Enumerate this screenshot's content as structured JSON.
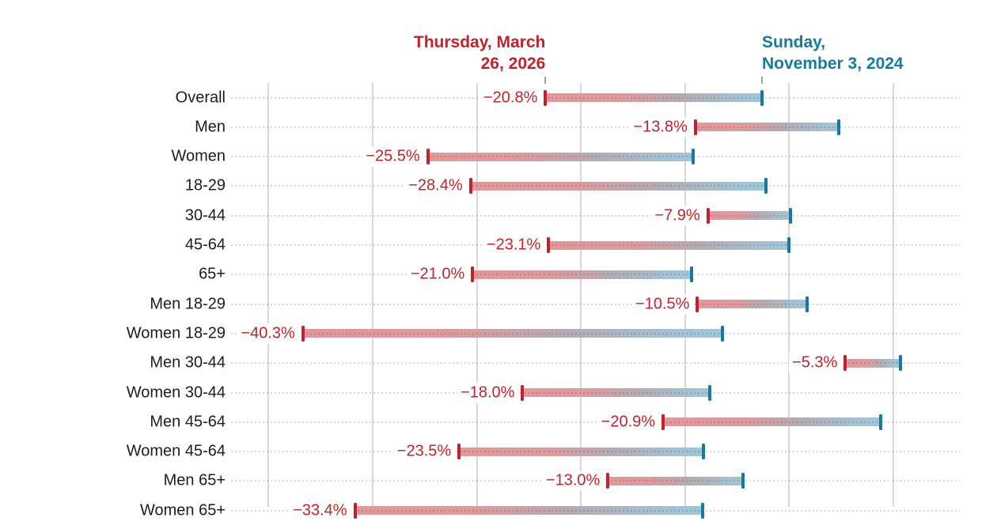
{
  "chart_data": {
    "type": "dumbbell",
    "description_of_marks": "horizontal gradient bars from a red cap (later date, lower value) to a teal cap (earlier date, higher value) with red change labels",
    "date_end": {
      "lines": [
        "Thursday, March",
        "26, 2026"
      ]
    },
    "date_start": {
      "lines": [
        "Sunday,",
        "November 3, 2024"
      ]
    },
    "axis": {
      "min": -3.6,
      "max": 66.4,
      "gridlines": [
        0,
        10,
        20,
        30,
        40,
        50,
        60
      ],
      "tick_labels_visible": false,
      "grid": "on",
      "row_guides": "dotted"
    },
    "rows": [
      {
        "label": "Overall",
        "change_label": "−20.8%",
        "change": -20.8,
        "start_value": 47.4
      },
      {
        "label": "Men",
        "change_label": "−13.8%",
        "change": -13.8,
        "start_value": 54.8
      },
      {
        "label": "Women",
        "change_label": "−25.5%",
        "change": -25.5,
        "start_value": 40.8
      },
      {
        "label": "18-29",
        "change_label": "−28.4%",
        "change": -28.4,
        "start_value": 47.8
      },
      {
        "label": "30-44",
        "change_label": "−7.9%",
        "change": -7.9,
        "start_value": 50.1
      },
      {
        "label": "45-64",
        "change_label": "−23.1%",
        "change": -23.1,
        "start_value": 50.0
      },
      {
        "label": "65+",
        "change_label": "−21.0%",
        "change": -21.0,
        "start_value": 40.6
      },
      {
        "label": "Men 18-29",
        "change_label": "−10.5%",
        "change": -10.5,
        "start_value": 51.7
      },
      {
        "label": "Women 18-29",
        "change_label": "−40.3%",
        "change": -40.3,
        "start_value": 43.6
      },
      {
        "label": "Men 30-44",
        "change_label": "−5.3%",
        "change": -5.3,
        "start_value": 60.7
      },
      {
        "label": "Women 30-44",
        "change_label": "−18.0%",
        "change": -18.0,
        "start_value": 42.4
      },
      {
        "label": "Men 45-64",
        "change_label": "−20.9%",
        "change": -20.9,
        "start_value": 58.8
      },
      {
        "label": "Women 45-64",
        "change_label": "−23.5%",
        "change": -23.5,
        "start_value": 41.8
      },
      {
        "label": "Men 65+",
        "change_label": "−13.0%",
        "change": -13.0,
        "start_value": 45.6
      },
      {
        "label": "Women 65+",
        "change_label": "−33.4%",
        "change": -33.4,
        "start_value": 41.7
      }
    ],
    "colors": {
      "end_accent": "#c0232b",
      "start_accent": "#17799e",
      "bar_gradient": [
        "#e1989a",
        "#b4abb2",
        "#a0c5d8"
      ],
      "gridline": "#d8d8d8",
      "category_text": "#1c1c1c"
    }
  }
}
